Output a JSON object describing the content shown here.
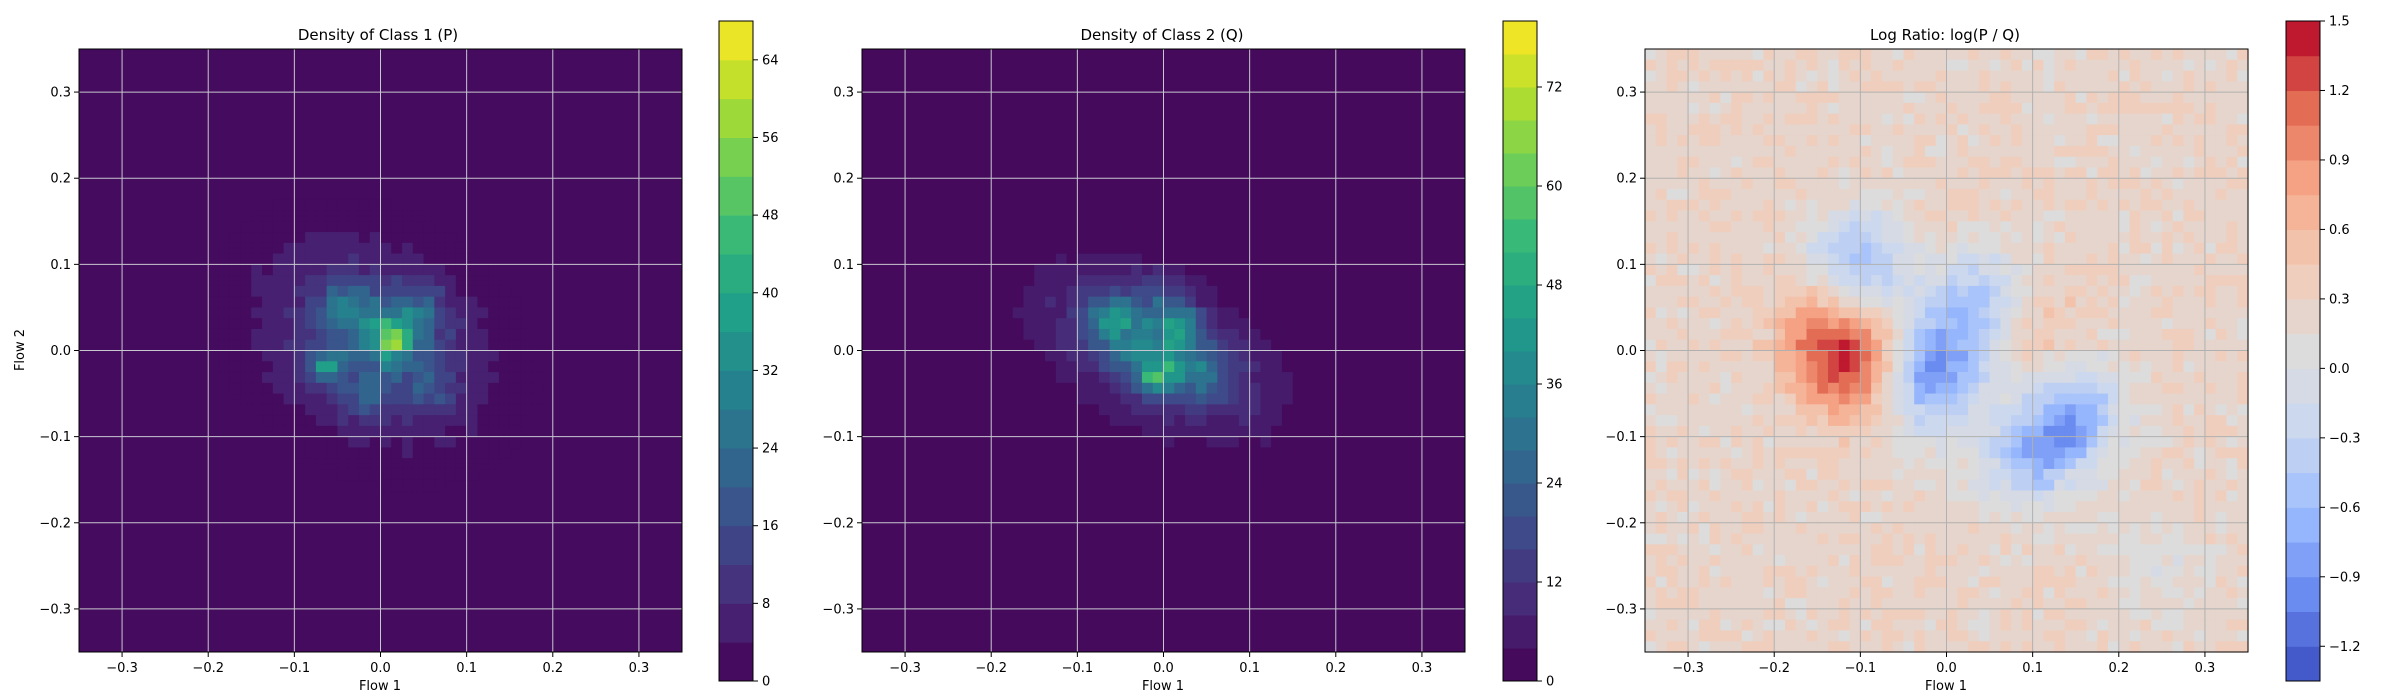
{
  "chart_data": [
    {
      "type": "heatmap",
      "title": "Density of Class 1 (P)",
      "xlabel": "Flow 1",
      "ylabel": "Flow 2",
      "xlim": [
        -0.35,
        0.35
      ],
      "ylim": [
        -0.35,
        0.35
      ],
      "xticks": [
        "−0.3",
        "−0.2",
        "−0.1",
        "0.0",
        "0.1",
        "0.2",
        "0.3"
      ],
      "yticks": [
        "−0.3",
        "−0.2",
        "−0.1",
        "0.0",
        "0.1",
        "0.2",
        "0.3"
      ],
      "grid": true,
      "colormap": "viridis",
      "colorbar": {
        "min": 0,
        "max": 68,
        "levels": 17,
        "ticks": [
          "0",
          "8",
          "16",
          "24",
          "32",
          "40",
          "48",
          "56",
          "64"
        ]
      },
      "blobs": [
        {
          "x": -0.01,
          "y": 0.01,
          "sx": 0.085,
          "sy": 0.075,
          "rho": -0.25,
          "amp": 16
        },
        {
          "x": 0.01,
          "y": 0.02,
          "sx": 0.028,
          "sy": 0.025,
          "rho": 0,
          "amp": 24
        },
        {
          "x": 0.015,
          "y": 0.01,
          "sx": 0.012,
          "sy": 0.012,
          "rho": 0,
          "amp": 18
        },
        {
          "x": -0.065,
          "y": -0.02,
          "sx": 0.015,
          "sy": 0.013,
          "rho": 0,
          "amp": 22
        },
        {
          "x": -0.04,
          "y": 0.055,
          "sx": 0.02,
          "sy": 0.018,
          "rho": 0,
          "amp": 12
        },
        {
          "x": 0.05,
          "y": 0.05,
          "sx": 0.02,
          "sy": 0.02,
          "rho": 0,
          "amp": 10
        },
        {
          "x": 0.06,
          "y": -0.04,
          "sx": 0.02,
          "sy": 0.02,
          "rho": 0,
          "amp": 9
        },
        {
          "x": -0.02,
          "y": -0.05,
          "sx": 0.02,
          "sy": 0.02,
          "rho": 0,
          "amp": 8
        }
      ]
    },
    {
      "type": "heatmap",
      "title": "Density of Class 2 (Q)",
      "xlabel": "Flow 1",
      "ylabel": "",
      "xlim": [
        -0.35,
        0.35
      ],
      "ylim": [
        -0.35,
        0.35
      ],
      "xticks": [
        "−0.3",
        "−0.2",
        "−0.1",
        "0.0",
        "0.1",
        "0.2",
        "0.3"
      ],
      "yticks": [
        "−0.3",
        "−0.2",
        "−0.1",
        "0.0",
        "0.1",
        "0.2",
        "0.3"
      ],
      "grid": true,
      "colormap": "viridis",
      "colorbar": {
        "min": 0,
        "max": 80,
        "levels": 20,
        "ticks": [
          "0",
          "12",
          "24",
          "36",
          "48",
          "60",
          "72"
        ]
      },
      "blobs": [
        {
          "x": -0.01,
          "y": 0.0,
          "sx": 0.09,
          "sy": 0.065,
          "rho": -0.45,
          "amp": 18
        },
        {
          "x": -0.01,
          "y": 0.0,
          "sx": 0.045,
          "sy": 0.03,
          "rho": -0.5,
          "amp": 20
        },
        {
          "x": -0.01,
          "y": -0.03,
          "sx": 0.015,
          "sy": 0.012,
          "rho": 0,
          "amp": 30
        },
        {
          "x": 0.02,
          "y": 0.03,
          "sx": 0.015,
          "sy": 0.015,
          "rho": 0,
          "amp": 22
        },
        {
          "x": -0.06,
          "y": 0.04,
          "sx": 0.02,
          "sy": 0.02,
          "rho": 0,
          "amp": 16
        },
        {
          "x": 0.0,
          "y": 0.06,
          "sx": 0.02,
          "sy": 0.02,
          "rho": 0,
          "amp": 12
        },
        {
          "x": 0.05,
          "y": -0.03,
          "sx": 0.02,
          "sy": 0.02,
          "rho": 0,
          "amp": 10
        }
      ]
    },
    {
      "type": "heatmap",
      "title": "Log Ratio: log(P / Q)",
      "xlabel": "Flow 1",
      "ylabel": "",
      "xlim": [
        -0.35,
        0.35
      ],
      "ylim": [
        -0.35,
        0.35
      ],
      "xticks": [
        "−0.3",
        "−0.2",
        "−0.1",
        "0.0",
        "0.1",
        "0.2",
        "0.3"
      ],
      "yticks": [
        "−0.3",
        "−0.2",
        "−0.1",
        "0.0",
        "0.1",
        "0.2",
        "0.3"
      ],
      "grid": true,
      "colormap": "coolwarm",
      "colorbar": {
        "min": -1.35,
        "max": 1.5,
        "levels": 19,
        "ticks": [
          "−1.2",
          "−0.9",
          "−0.6",
          "−0.3",
          "0.0",
          "0.3",
          "0.6",
          "0.9",
          "1.2",
          "1.5"
        ]
      },
      "regions": [
        {
          "x": -0.1,
          "y": -0.02,
          "value": 1.2
        },
        {
          "x": -0.145,
          "y": 0.03,
          "value": 0.8
        },
        {
          "x": 0.085,
          "y": 0.03,
          "value": 0.7
        },
        {
          "x": -0.04,
          "y": 0.115,
          "value": 0.4
        },
        {
          "x": 0.05,
          "y": -0.07,
          "value": 0.4
        },
        {
          "x": -0.1,
          "y": 0.1,
          "value": -0.6
        },
        {
          "x": -0.02,
          "y": -0.03,
          "value": -0.9
        },
        {
          "x": 0.04,
          "y": 0.05,
          "value": -0.6
        },
        {
          "x": 0.15,
          "y": -0.08,
          "value": -0.5
        },
        {
          "x": 0.1,
          "y": -0.12,
          "value": -0.4
        },
        {
          "x": -0.2,
          "y": 0.2,
          "value": 0.3
        },
        {
          "x": 0.25,
          "y": -0.25,
          "value": 0.0
        }
      ]
    }
  ]
}
